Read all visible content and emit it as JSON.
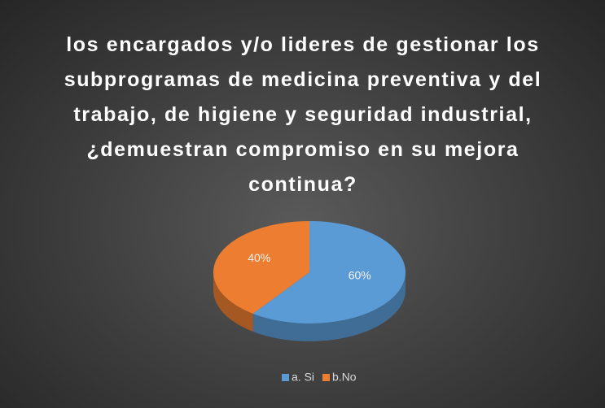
{
  "chart_data": {
    "type": "pie",
    "title": "los encargados y/o lideres de gestionar los subprogramas de medicina preventiva y del trabajo, de higiene y seguridad industrial, ¿demuestran compromiso en su mejora continua?",
    "categories": [
      "a. Si",
      "b.No"
    ],
    "values": [
      60,
      40
    ],
    "value_labels": [
      "60%",
      "40%"
    ],
    "colors": [
      "#5b9bd5",
      "#ed7d31"
    ],
    "legend": "bottom"
  }
}
